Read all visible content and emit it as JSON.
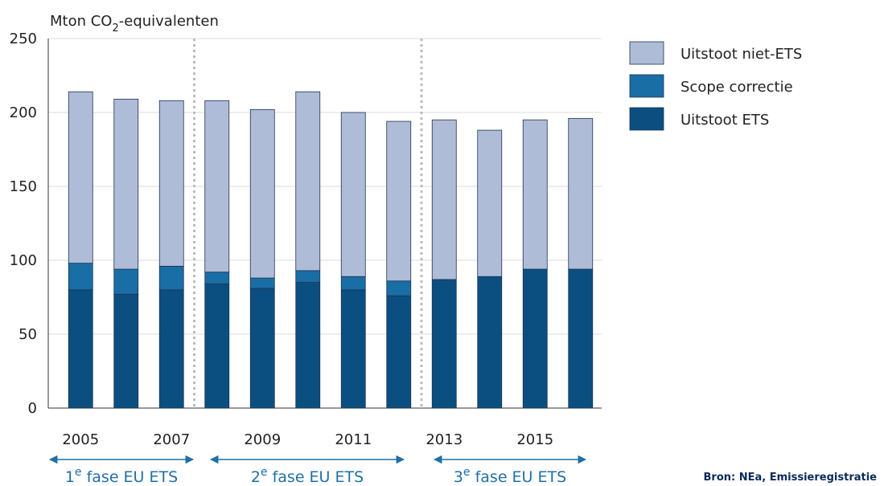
{
  "chart_data": {
    "type": "stacked_bar",
    "ylabel": {
      "text": "Mton CO",
      "sub": "2",
      "after": "-equivalenten"
    },
    "categories": [
      "2005",
      null,
      "2007",
      null,
      "2009",
      null,
      "2011",
      null,
      "2013",
      null,
      "2015",
      null
    ],
    "series": [
      {
        "name": "Uitstoot niet-ETS",
        "color": "#aebcd8",
        "values": [
          116,
          115,
          112,
          116,
          114,
          121,
          111,
          108,
          108,
          99,
          101,
          102
        ]
      },
      {
        "name": "Scope correctie",
        "color": "#1a6ea6",
        "values": [
          18,
          17,
          16,
          8,
          7,
          8,
          9,
          10,
          0,
          0,
          0,
          0
        ]
      },
      {
        "name": "Uitstoot ETS",
        "color": "#0b4f80",
        "values": [
          80,
          77,
          80,
          84,
          81,
          85,
          80,
          76,
          87,
          89,
          94,
          94
        ]
      }
    ],
    "ylim": [
      0,
      250
    ],
    "yticks": [
      0,
      50,
      100,
      150,
      200,
      250
    ],
    "grid": true,
    "phases": [
      {
        "num": "1",
        "sup": "e",
        "text": " fase EU ETS"
      },
      {
        "num": "2",
        "sup": "e",
        "text": " fase EU ETS"
      },
      {
        "num": "3",
        "sup": "e",
        "text": " fase EU ETS"
      }
    ],
    "source": "Bron: NEa, Emissieregistratie"
  }
}
